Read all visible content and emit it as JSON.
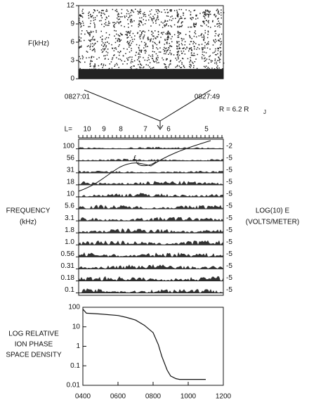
{
  "chart_data": [
    {
      "type": "spectrogram",
      "ylabel": "F(kHz)",
      "ylim": [
        0,
        12
      ],
      "yticks": [
        0,
        3,
        6,
        9,
        12
      ],
      "x_tick_labels": [
        "0827:01",
        "0827:49"
      ],
      "range_label": "R = 6.2 R",
      "range_sub": "J"
    },
    {
      "type": "channels",
      "l_title": "L=",
      "l_labels": [
        10,
        9,
        8,
        7,
        6,
        5
      ],
      "ylabel": [
        "FREQUENCY",
        "(kHz)"
      ],
      "y2label": [
        "LOG(10) E",
        "(VOLTS/METER)"
      ],
      "annotation": "f",
      "annotation_sub": "c",
      "frequencies": [
        "100",
        "56",
        "31",
        "18",
        "10",
        "5.6",
        "3.1",
        "1.8",
        "1.0",
        "0.56",
        "0.31",
        "0.18",
        "0.1"
      ],
      "log_e": [
        "-2",
        "-5",
        "-5",
        "-5",
        "-5",
        "-5",
        "-5",
        "-5",
        "-5",
        "-5",
        "-5",
        "-5",
        "-5"
      ]
    },
    {
      "type": "line",
      "ylabel": [
        "LOG RELATIVE",
        "ION PHASE",
        "SPACE DENSITY"
      ],
      "log_y": true,
      "x": [
        400,
        420,
        500,
        600,
        650,
        700,
        750,
        800,
        830,
        850,
        880,
        900,
        930,
        950,
        1100
      ],
      "values": [
        80,
        50,
        45,
        38,
        30,
        22,
        12,
        5,
        1.2,
        0.3,
        0.06,
        0.03,
        0.022,
        0.02,
        0.02
      ],
      "xlim": [
        400,
        1200
      ],
      "ylim": [
        0.01,
        100
      ],
      "xticks": [
        {
          "value": 400,
          "label": "0400"
        },
        {
          "value": 600,
          "label": "0600"
        },
        {
          "value": 800,
          "label": "0800"
        },
        {
          "value": 1000,
          "label": "1000"
        },
        {
          "value": 1200,
          "label": "1200"
        }
      ],
      "yticks": [
        100,
        10,
        1,
        0.1,
        0.01
      ],
      "color": "#111111"
    }
  ]
}
